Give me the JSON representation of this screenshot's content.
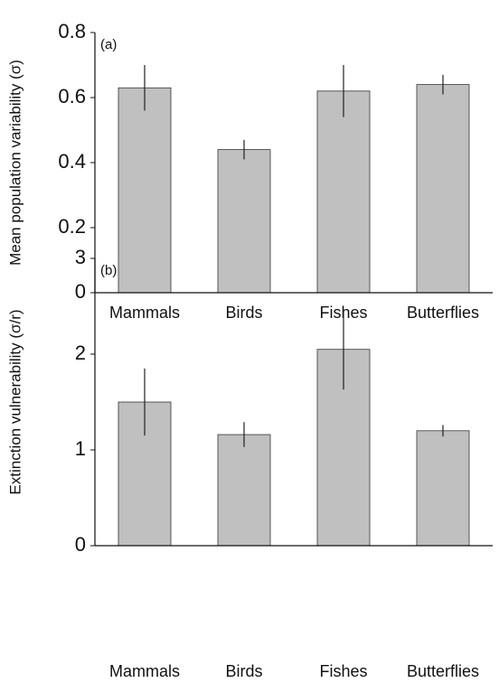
{
  "chart_data": [
    {
      "type": "bar",
      "annotation": "(a)",
      "ylabel": "Mean population variability (σ)",
      "categories": [
        "Mammals",
        "Birds",
        "Fishes",
        "Butterflies"
      ],
      "values": [
        0.63,
        0.44,
        0.62,
        0.64
      ],
      "errors": [
        0.07,
        0.03,
        0.08,
        0.03
      ],
      "color": "#c0c0c0",
      "ylim": [
        0,
        0.8
      ],
      "yticks": [
        0,
        0.2,
        0.4,
        0.6,
        0.8
      ]
    },
    {
      "type": "bar",
      "annotation": "(b)",
      "ylabel": "Extinction vulnerability (σ/r)",
      "categories": [
        "Mammals",
        "Birds",
        "Fishes",
        "Butterflies"
      ],
      "values": [
        1.5,
        1.16,
        2.05,
        1.2
      ],
      "errors": [
        0.35,
        0.13,
        0.42,
        0.06
      ],
      "color": "#c0c0c0",
      "ylim": [
        0,
        3
      ],
      "yticks": [
        0,
        1,
        2,
        3
      ]
    }
  ]
}
